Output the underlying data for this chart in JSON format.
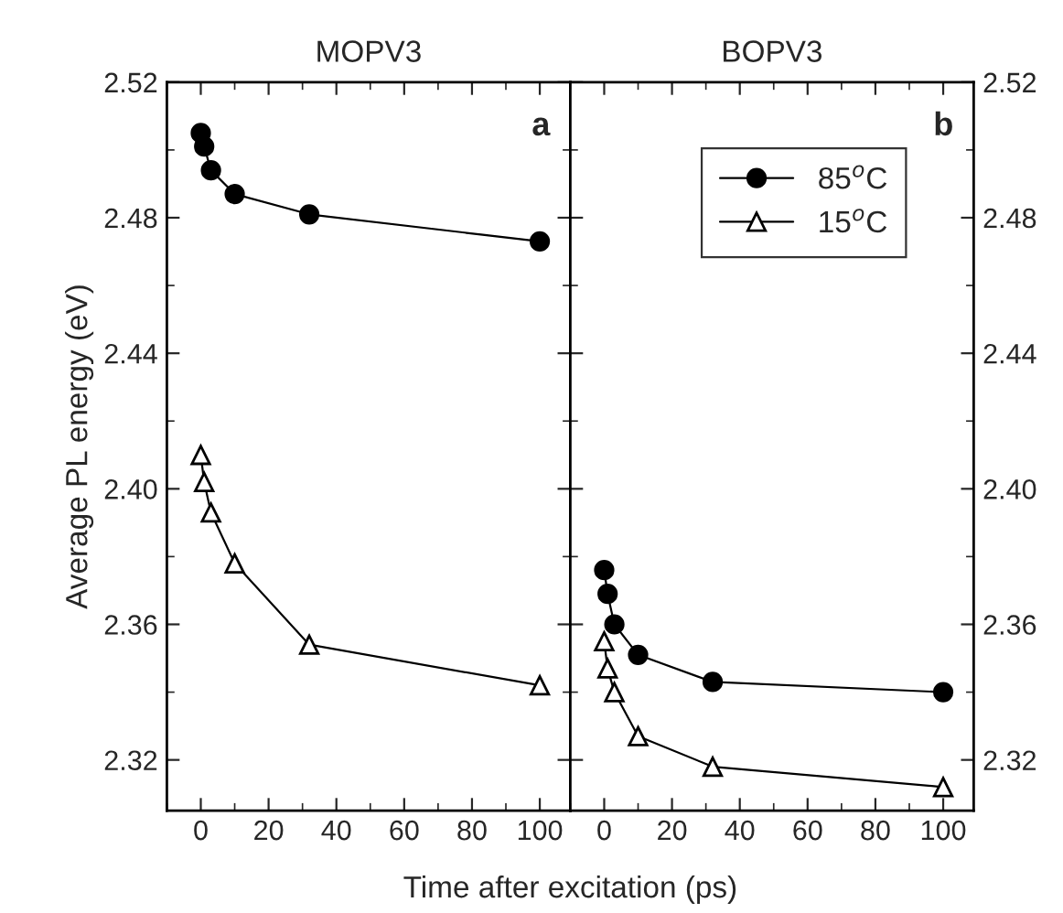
{
  "chart_data": [
    {
      "type": "line",
      "title": "MOPV3",
      "xlabel": "Time after excitation (ps)",
      "ylabel": "Average PL energy (eV)",
      "annotations": [
        "a"
      ],
      "xlim": [
        -10,
        109
      ],
      "ylim": [
        2.305,
        2.52
      ],
      "xticks": [
        0,
        20,
        40,
        60,
        80,
        100
      ],
      "yticks": [
        2.32,
        2.36,
        {
          "value": 2.4,
          "label": "2.40"
        },
        2.44,
        2.48,
        2.52
      ],
      "x": [
        0,
        1,
        3,
        10,
        32,
        100
      ],
      "legend": false,
      "grid": false,
      "series": [
        {
          "color": "#000000",
          "marker": "circle",
          "values": [
            2.505,
            2.501,
            2.494,
            2.487,
            2.481,
            2.473
          ]
        },
        {
          "color": "#000000",
          "marker": "triangle",
          "values": [
            2.41,
            2.402,
            2.393,
            2.378,
            2.354,
            2.342
          ]
        }
      ]
    },
    {
      "type": "line",
      "title": "BOPV3",
      "annotations": [
        "b"
      ],
      "xlim": [
        -10,
        109
      ],
      "ylim": [
        2.305,
        2.52
      ],
      "xticks": [
        0,
        20,
        40,
        60,
        80,
        100
      ],
      "yticks": [
        2.32,
        2.36,
        {
          "value": 2.4,
          "label": "2.40"
        },
        2.44,
        2.48,
        2.52
      ],
      "x": [
        0,
        1,
        3,
        10,
        32,
        100
      ],
      "legend": "top right",
      "grid": false,
      "series": [
        {
          "name": "85$^{o}$C",
          "color": "#000000",
          "marker": "circle",
          "values": [
            2.376,
            2.369,
            2.36,
            2.351,
            2.343,
            2.34
          ]
        },
        {
          "name": "15$^{o}$C",
          "color": "#000000",
          "marker": "triangle",
          "values": [
            2.355,
            2.347,
            2.34,
            2.327,
            2.318,
            2.312
          ]
        }
      ]
    }
  ]
}
